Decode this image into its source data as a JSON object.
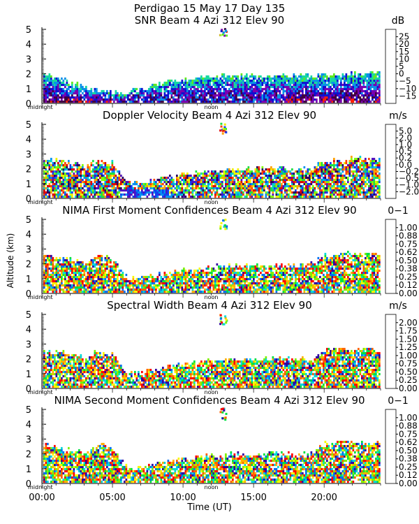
{
  "figure": {
    "title_line1": "Perdigao  15 May 17 Day 135",
    "ylabel": "Altitude (km)",
    "xlabel": "Time (UT)",
    "xtick_labels": [
      "00:00",
      "05:00",
      "10:00",
      "15:00",
      "20:00"
    ],
    "xtick_hours": [
      0,
      5,
      10,
      15,
      20
    ],
    "x_range_hours": [
      0,
      24
    ],
    "midnight_label": "midnight",
    "noon_label": "noon"
  },
  "panels": [
    {
      "title": "SNR Beam 4 Azi 312 Elev 90",
      "unit": "dB",
      "colorbar_labels": [
        "25",
        "20",
        "15",
        "10",
        "5",
        "0",
        "−5",
        "−10",
        "−15"
      ],
      "colors": [
        "#ffc000",
        "#ff8000",
        "#ff2000",
        "#400040",
        "#7a00b0",
        "#1010d0",
        "#0a90e8",
        "#18d8a0",
        "#60e820",
        "#a0f040"
      ]
    },
    {
      "title": "Doppler Velocity Beam 4 Azi 312 Elev 90",
      "unit": "m/s",
      "colorbar_labels": [
        "5.0",
        "2.0",
        "1.0",
        "0.5",
        "0.2",
        "0.0",
        "−0.2",
        "−0.5",
        "−1.0",
        "−2.0"
      ],
      "colors": [
        "#2a0060",
        "#5010c0",
        "#1040f0",
        "#0090f0",
        "#00d0d0",
        "#20e040",
        "#80ff00",
        "#f0f000",
        "#ffa000",
        "#ff4000",
        "#e00000"
      ]
    },
    {
      "title": "NIMA First Moment Confidences Beam 4 Azi 312 Elev 90",
      "unit": "0−1",
      "colorbar_labels": [
        "1.00",
        "0.88",
        "0.75",
        "0.62",
        "0.50",
        "0.38",
        "0.25",
        "0.12",
        "0.00"
      ],
      "colors": [
        "#ff0000",
        "#ff6000",
        "#ffb000",
        "#f8f800",
        "#80f000",
        "#00e040",
        "#00d8d8",
        "#0070f0",
        "#3000a0"
      ]
    },
    {
      "title": "Spectral Width Beam 4 Azi 312 Elev 90",
      "unit": "m/s",
      "colorbar_labels": [
        "2.00",
        "1.75",
        "1.50",
        "1.25",
        "1.00",
        "0.75",
        "0.50",
        "0.25",
        "0.00"
      ],
      "colors": [
        "#ff0000",
        "#ff6000",
        "#ffb000",
        "#f8f800",
        "#80f000",
        "#00e040",
        "#00d8d8",
        "#0070f0",
        "#3000a0"
      ]
    },
    {
      "title": "NIMA Second Moment Confidences Beam 4 Azi 312 Elev 90",
      "unit": "0−1",
      "colorbar_labels": [
        "1.00",
        "0.88",
        "0.75",
        "0.62",
        "0.50",
        "0.38",
        "0.25",
        "0.12",
        "0.00"
      ],
      "colors": [
        "#ff0000",
        "#ff6000",
        "#ffb000",
        "#f8f800",
        "#80f000",
        "#00e040",
        "#00d8d8",
        "#0070f0",
        "#3000a0"
      ]
    }
  ],
  "chart_data": [
    {
      "type": "heatmap",
      "title": "SNR Beam 4 Azi 312 Elev 90",
      "xlabel": "Time (UT)",
      "ylabel": "Altitude (km)",
      "x_range_hours": [
        0,
        24
      ],
      "ylim": [
        0,
        5
      ],
      "yticks": [
        0,
        1,
        2,
        3,
        4,
        5
      ],
      "colorbar": {
        "unit": "dB",
        "levels": [
          25,
          20,
          15,
          10,
          5,
          0,
          -5,
          -10,
          -15
        ]
      },
      "echo_top_km": [
        2.0,
        1.6,
        1.4,
        1.0,
        0.8,
        0.7,
        0.7,
        0.9,
        1.2,
        1.4,
        1.6,
        1.7,
        1.8,
        1.8,
        1.8,
        1.8,
        1.8,
        1.8,
        1.8,
        1.8,
        1.9,
        1.9,
        2.0,
        2.0,
        2.0
      ],
      "isolated_echo": {
        "hour": 12.8,
        "altitude_km": [
          4.5,
          5.0
        ]
      }
    },
    {
      "type": "heatmap",
      "title": "Doppler Velocity Beam 4 Azi 312 Elev 90",
      "xlabel": "Time (UT)",
      "ylabel": "Altitude (km)",
      "x_range_hours": [
        0,
        24
      ],
      "ylim": [
        0,
        5
      ],
      "yticks": [
        0,
        1,
        2,
        3,
        4,
        5
      ],
      "colorbar": {
        "unit": "m/s",
        "levels": [
          5.0,
          2.0,
          1.0,
          0.5,
          0.2,
          0.0,
          -0.2,
          -0.5,
          -1.0,
          -2.0
        ]
      },
      "echo_top_km": [
        2.7,
        2.5,
        2.3,
        2.1,
        2.6,
        2.3,
        1.0,
        1.0,
        1.2,
        1.5,
        1.6,
        1.7,
        1.8,
        1.9,
        1.9,
        1.9,
        1.9,
        2.0,
        2.0,
        2.0,
        2.4,
        2.5,
        2.6,
        2.6,
        2.6
      ],
      "isolated_echo": {
        "hour": 12.8,
        "altitude_km": [
          4.3,
          5.0
        ]
      }
    },
    {
      "type": "heatmap",
      "title": "NIMA First Moment Confidences Beam 4 Azi 312 Elev 90",
      "xlabel": "Time (UT)",
      "ylabel": "Altitude (km)",
      "x_range_hours": [
        0,
        24
      ],
      "ylim": [
        0,
        5
      ],
      "yticks": [
        0,
        1,
        2,
        3,
        4,
        5
      ],
      "colorbar": {
        "unit": "0-1",
        "levels": [
          1.0,
          0.88,
          0.75,
          0.62,
          0.5,
          0.38,
          0.25,
          0.12,
          0.0
        ]
      },
      "echo_top_km": [
        2.5,
        2.4,
        2.2,
        2.0,
        2.5,
        2.2,
        1.0,
        1.0,
        1.2,
        1.4,
        1.5,
        1.6,
        1.7,
        1.8,
        1.8,
        1.8,
        1.8,
        1.9,
        1.9,
        2.0,
        2.5,
        2.6,
        2.6,
        2.6,
        2.6
      ],
      "isolated_echo": {
        "hour": 12.8,
        "altitude_km": [
          4.2,
          5.0
        ]
      }
    },
    {
      "type": "heatmap",
      "title": "Spectral Width Beam 4 Azi 312 Elev 90",
      "xlabel": "Time (UT)",
      "ylabel": "Altitude (km)",
      "x_range_hours": [
        0,
        24
      ],
      "ylim": [
        0,
        5
      ],
      "yticks": [
        0,
        1,
        2,
        3,
        4,
        5
      ],
      "colorbar": {
        "unit": "m/s",
        "levels": [
          2.0,
          1.75,
          1.5,
          1.25,
          1.0,
          0.75,
          0.5,
          0.25,
          0.0
        ]
      },
      "echo_top_km": [
        2.5,
        2.4,
        2.2,
        2.0,
        2.5,
        2.2,
        1.0,
        1.0,
        1.2,
        1.4,
        1.6,
        1.7,
        1.8,
        1.9,
        1.9,
        1.9,
        1.9,
        2.0,
        2.0,
        2.0,
        2.5,
        2.6,
        2.6,
        2.6,
        2.6
      ],
      "isolated_echo": {
        "hour": 12.8,
        "altitude_km": [
          4.2,
          5.0
        ]
      }
    },
    {
      "type": "heatmap",
      "title": "NIMA Second Moment Confidences Beam 4 Azi 312 Elev 90",
      "xlabel": "Time (UT)",
      "ylabel": "Altitude (km)",
      "x_range_hours": [
        0,
        24
      ],
      "ylim": [
        0,
        5
      ],
      "yticks": [
        0,
        1,
        2,
        3,
        4,
        5
      ],
      "colorbar": {
        "unit": "0-1",
        "levels": [
          1.0,
          0.88,
          0.75,
          0.62,
          0.5,
          0.38,
          0.25,
          0.12,
          0.0
        ]
      },
      "echo_top_km": [
        2.6,
        2.4,
        2.2,
        2.0,
        2.6,
        2.2,
        1.0,
        1.0,
        1.2,
        1.4,
        1.6,
        1.7,
        1.8,
        1.9,
        1.9,
        1.9,
        1.9,
        2.0,
        2.0,
        2.0,
        2.6,
        2.7,
        2.7,
        2.7,
        2.7
      ],
      "isolated_echo": {
        "hour": 12.8,
        "altitude_km": [
          4.2,
          5.0
        ]
      }
    }
  ]
}
